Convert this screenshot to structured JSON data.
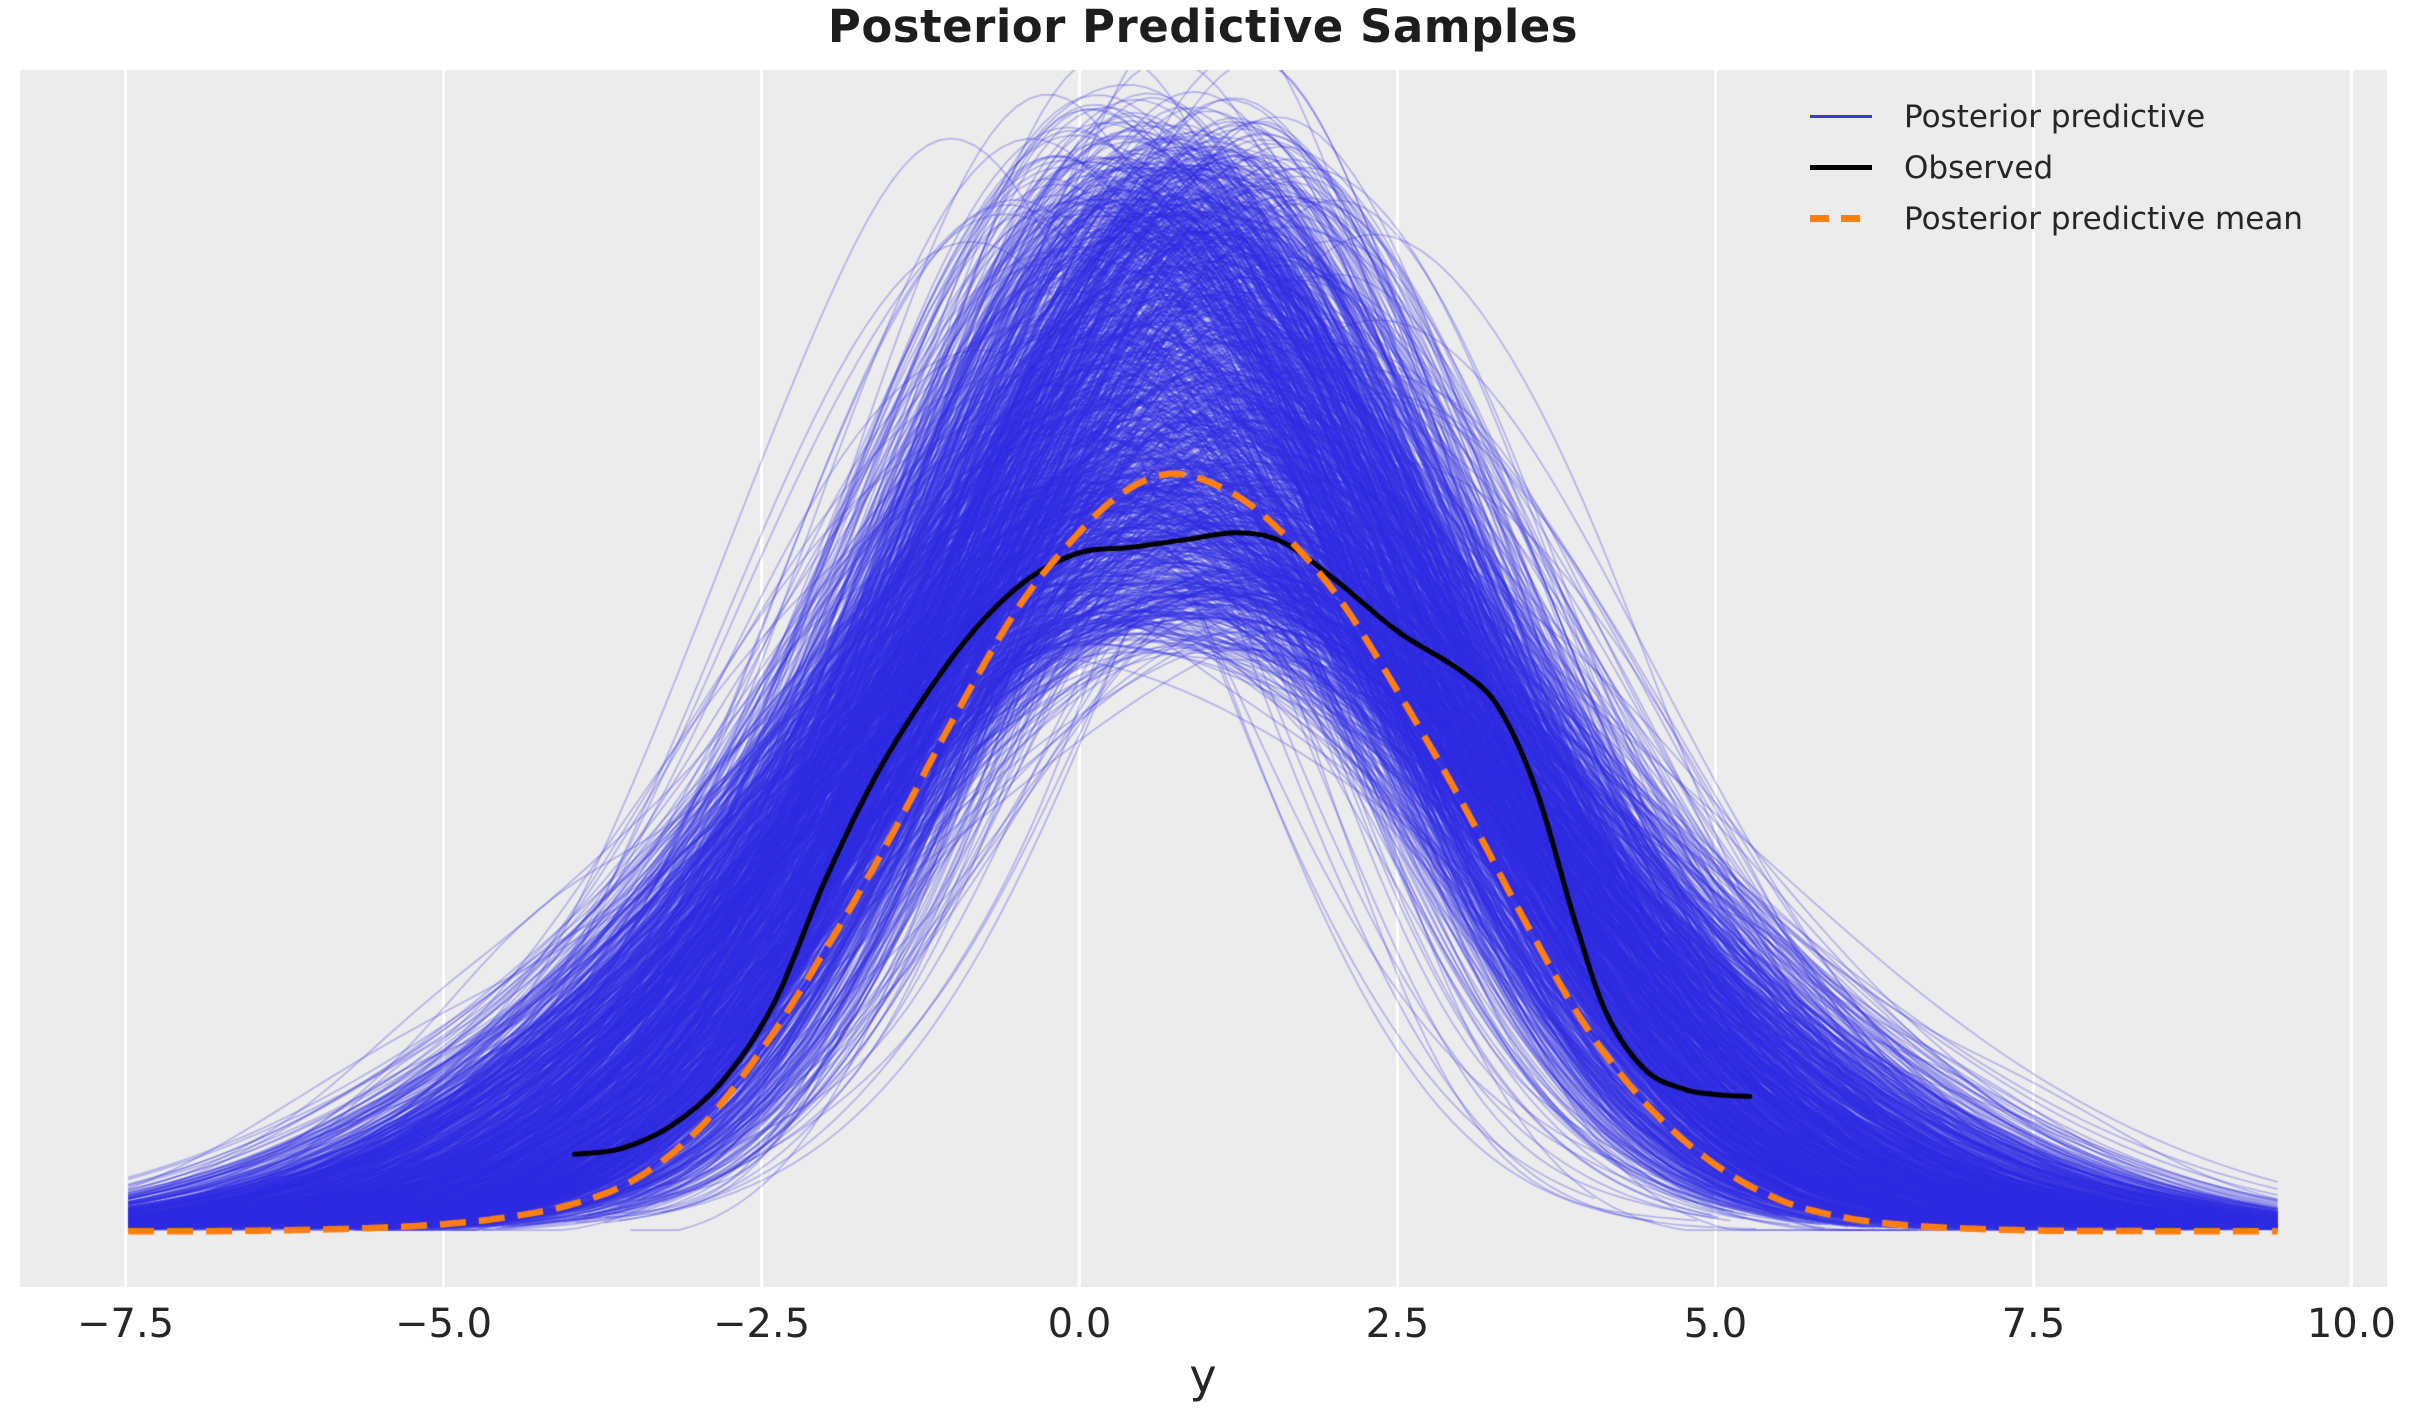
{
  "chart_data": {
    "type": "line",
    "subtype": "kde-posterior-predictive-check",
    "title": "Posterior Predictive Samples",
    "xlabel": "y",
    "ylabel": "",
    "xlim": [
      -8.33,
      10.28
    ],
    "ylim": [
      -0.011,
      0.233
    ],
    "x_ticks": [
      -7.5,
      -5.0,
      -2.5,
      0.0,
      2.5,
      5.0,
      7.5,
      10.0
    ],
    "x_tick_labels": [
      "−7.5",
      "−5.0",
      "−2.5",
      "0.0",
      "2.5",
      "5.0",
      "7.5",
      "10.0"
    ],
    "grid": {
      "vertical": true,
      "horizontal": false,
      "color": "#ffffff",
      "width": 2.5
    },
    "plot_background": "#ececec",
    "figure_background": "#ffffff",
    "text_color": "#262626",
    "legend": {
      "position": "upper right",
      "frame": false,
      "entries": [
        {
          "label": "Posterior predictive",
          "color": "#3b38d8",
          "style": "solid",
          "thickness": 3.5
        },
        {
          "label": "Observed",
          "color": "#000000",
          "style": "solid",
          "thickness": 4.5
        },
        {
          "label": "Posterior predictive mean",
          "color": "#ff7f0e",
          "style": "dashed",
          "thickness": 7
        }
      ]
    },
    "series": [
      {
        "name": "Posterior predictive",
        "kind": "kde-ensemble",
        "color_rgb": [
          47,
          42,
          224
        ],
        "alpha": 0.3,
        "line_width": 1.7,
        "n_curves": 1400,
        "seed": 7,
        "generator": {
          "mean_center": 0.78,
          "mean_sd": 0.5,
          "sigma_base": 1.8,
          "sigma_spread": 1.45,
          "sigma_power": 1.7,
          "sigma_noise": 0.06,
          "bump_count": 3,
          "bump_amp": 0.013,
          "bump_width_min": 0.5,
          "bump_width_spread": 0.9,
          "cut_base": 2.45,
          "cut_spread": 1.0,
          "x_min": -7.48,
          "x_max": 9.42,
          "min_density": 0.0004
        }
      },
      {
        "name": "Observed",
        "kind": "kde",
        "color": "#000000",
        "line_width": 5,
        "points": [
          [
            -3.97,
            0.0156
          ],
          [
            -3.6,
            0.0168
          ],
          [
            -3.2,
            0.0215
          ],
          [
            -2.8,
            0.0305
          ],
          [
            -2.4,
            0.046
          ],
          [
            -2.0,
            0.0705
          ],
          [
            -1.6,
            0.0915
          ],
          [
            -1.2,
            0.108
          ],
          [
            -0.8,
            0.1215
          ],
          [
            -0.4,
            0.131
          ],
          [
            0.0,
            0.1362
          ],
          [
            0.4,
            0.1373
          ],
          [
            0.8,
            0.1387
          ],
          [
            1.25,
            0.1402
          ],
          [
            1.6,
            0.1383
          ],
          [
            2.0,
            0.131
          ],
          [
            2.5,
            0.1205
          ],
          [
            3.0,
            0.1125
          ],
          [
            3.3,
            0.105
          ],
          [
            3.6,
            0.088
          ],
          [
            3.9,
            0.062
          ],
          [
            4.15,
            0.0435
          ],
          [
            4.45,
            0.0325
          ],
          [
            4.75,
            0.0287
          ],
          [
            5.0,
            0.0276
          ],
          [
            5.27,
            0.0272
          ]
        ]
      },
      {
        "name": "Posterior predictive mean",
        "kind": "kde-mean",
        "color": "#ff7f0e",
        "line_width": 6.5,
        "dash": [
          26,
          13
        ],
        "points": [
          [
            -7.48,
            0.0002
          ],
          [
            -6.8,
            0.0002
          ],
          [
            -6.2,
            0.0004
          ],
          [
            -5.6,
            0.0008
          ],
          [
            -5.0,
            0.0016
          ],
          [
            -4.5,
            0.003
          ],
          [
            -4.0,
            0.0055
          ],
          [
            -3.5,
            0.0105
          ],
          [
            -3.0,
            0.0205
          ],
          [
            -2.5,
            0.0365
          ],
          [
            -2.0,
            0.0565
          ],
          [
            -1.5,
            0.0785
          ],
          [
            -1.0,
            0.1025
          ],
          [
            -0.5,
            0.1245
          ],
          [
            -0.1,
            0.1375
          ],
          [
            0.3,
            0.1475
          ],
          [
            0.7,
            0.152
          ],
          [
            1.1,
            0.1495
          ],
          [
            1.5,
            0.1425
          ],
          [
            2.0,
            0.1285
          ],
          [
            2.5,
            0.1085
          ],
          [
            3.0,
            0.0865
          ],
          [
            3.5,
            0.0625
          ],
          [
            4.0,
            0.0405
          ],
          [
            4.5,
            0.0245
          ],
          [
            5.0,
            0.0135
          ],
          [
            5.5,
            0.0065
          ],
          [
            6.0,
            0.003
          ],
          [
            6.5,
            0.0014
          ],
          [
            7.0,
            0.0007
          ],
          [
            7.6,
            0.0003
          ],
          [
            8.4,
            0.0002
          ],
          [
            9.42,
            0.0002
          ]
        ]
      }
    ]
  }
}
